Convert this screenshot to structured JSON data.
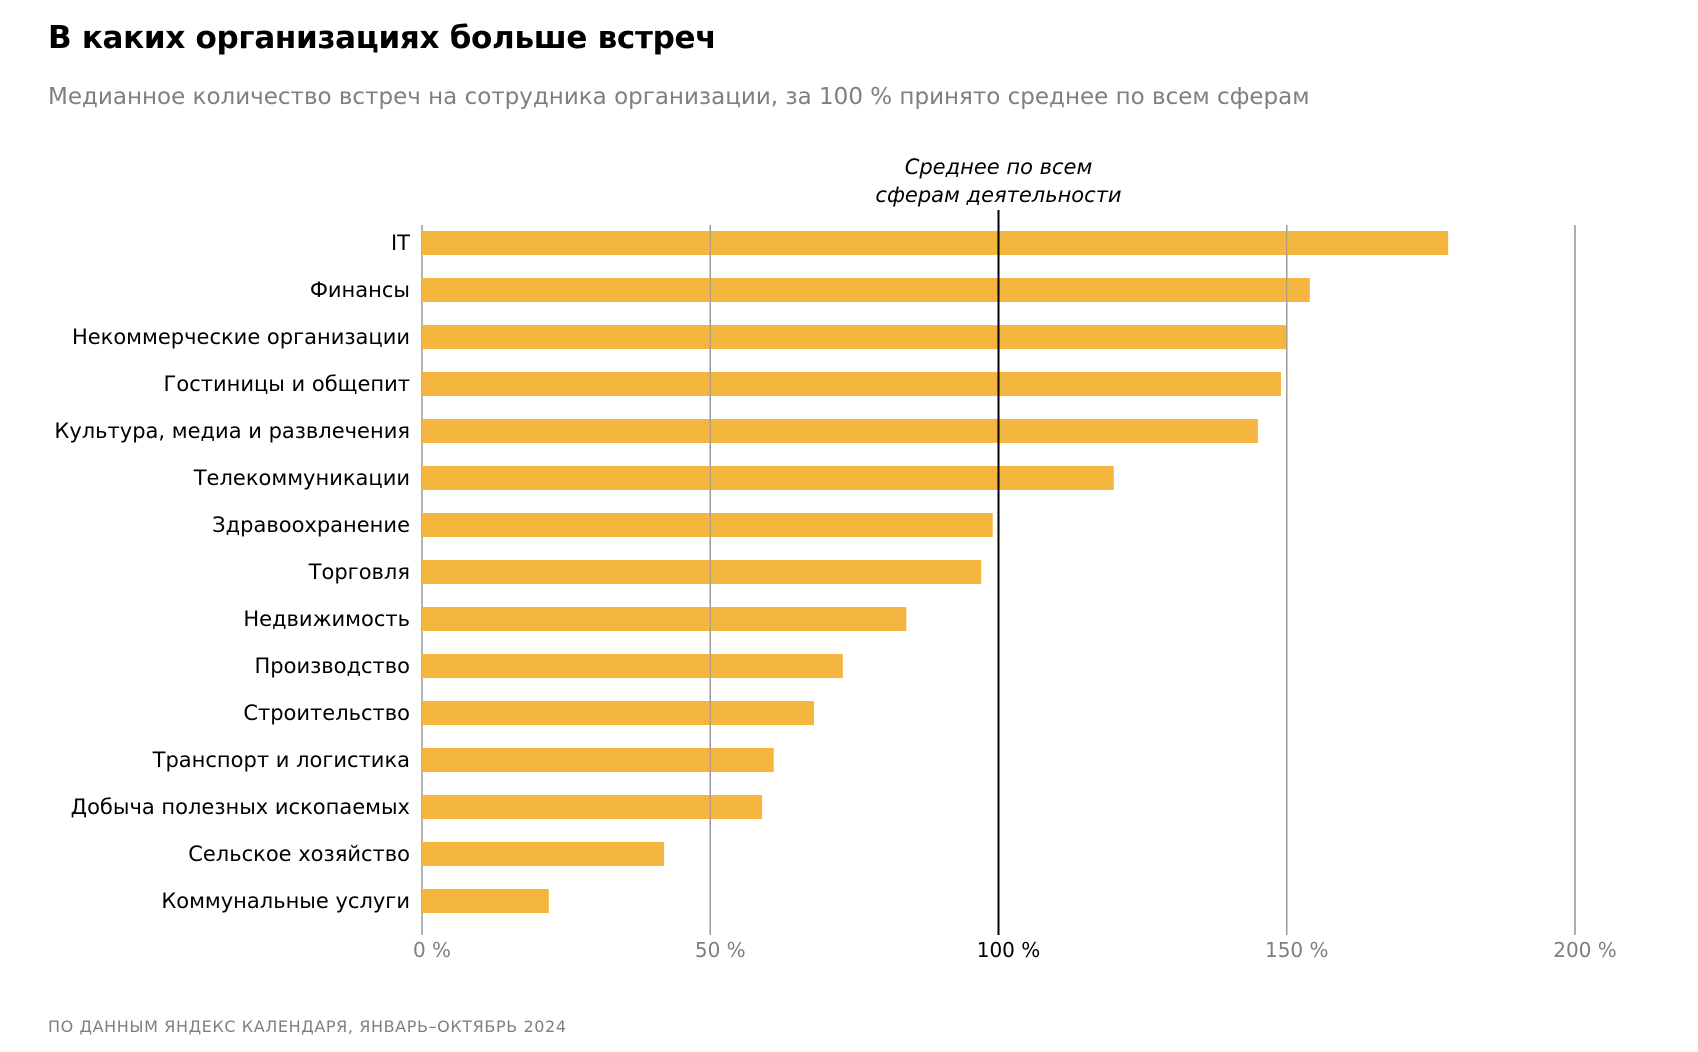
{
  "header": {
    "title": "В каких организациях больше встреч",
    "subtitle": "Медианное количество встреч на сотрудника организации, за 100 % принято среднее по всем сферам"
  },
  "footer": {
    "source": "ПО ДАННЫМ ЯНДЕКС КАЛЕНДАРЯ, ЯНВАРЬ–ОКТЯБРЬ 2024"
  },
  "colors": {
    "bar": "#f4b63f",
    "grid": "#9a9a9a",
    "reference": "#000000"
  },
  "chart_data": {
    "type": "bar",
    "orientation": "horizontal",
    "title": "В каких организациях больше встреч",
    "subtitle": "Медианное количество встреч на сотрудника организации, за 100 % принято среднее по всем сферам",
    "xlabel": "",
    "ylabel": "",
    "unit": "%",
    "xlim": [
      0,
      200
    ],
    "xticks": [
      0,
      50,
      100,
      150,
      200
    ],
    "xtick_labels": [
      "0 %",
      "50 %",
      "100 %",
      "150 %",
      "200 %"
    ],
    "grid": true,
    "reference_line": {
      "value": 100,
      "label_lines": [
        "Среднее по всем",
        "сферам деятельности"
      ]
    },
    "categories": [
      "IT",
      "Финансы",
      "Некоммерческие организации",
      "Гостиницы и общепит",
      "Культура, медиа и развлечения",
      "Телекоммуникации",
      "Здравоохранение",
      "Торговля",
      "Недвижимость",
      "Производство",
      "Строительство",
      "Транспорт и логистика",
      "Добыча полезных ископаемых",
      "Сельское хозяйство",
      "Коммунальные услуги"
    ],
    "values": [
      178,
      154,
      150,
      149,
      145,
      120,
      99,
      97,
      84,
      73,
      68,
      61,
      59,
      42,
      22
    ]
  }
}
